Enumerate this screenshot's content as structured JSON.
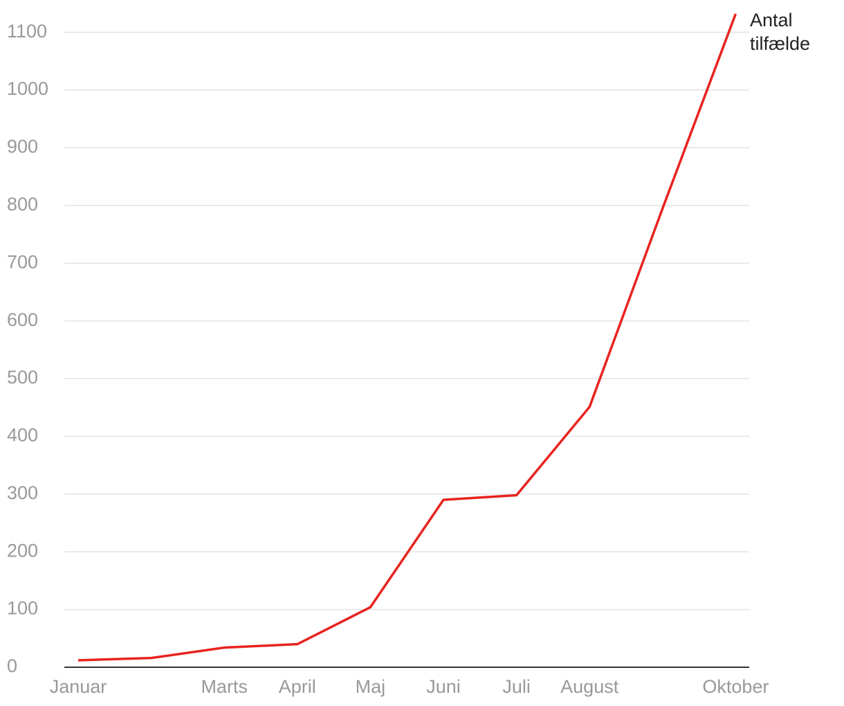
{
  "chart_data": {
    "type": "line",
    "categories": [
      "Januar",
      null,
      "Marts",
      "April",
      "Maj",
      "Juni",
      "Juli",
      "August",
      null,
      "Oktober"
    ],
    "series": [
      {
        "name": "Antal tilfælde",
        "color": "#e8231f",
        "values": [
          12,
          16,
          34,
          40,
          104,
          290,
          298,
          451,
          795,
          1132
        ]
      }
    ],
    "ylim": [
      0,
      1132
    ],
    "yticks": [
      0,
      100,
      200,
      300,
      400,
      500,
      600,
      700,
      800,
      900,
      1000,
      1100
    ],
    "grid": true
  }
}
